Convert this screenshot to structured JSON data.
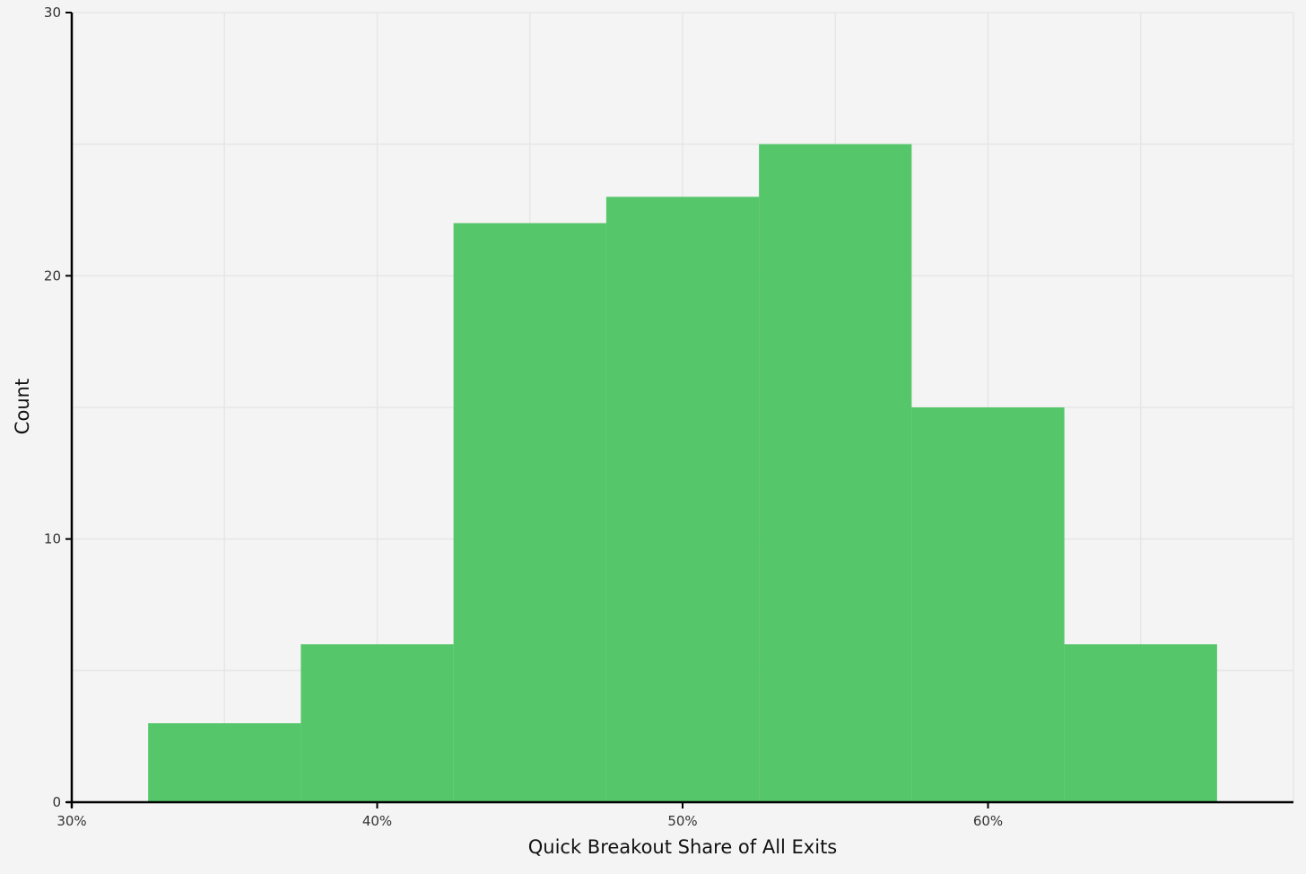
{
  "chart_data": {
    "type": "bar",
    "title": "",
    "xlabel": "Quick Breakout Share of All Exits",
    "ylabel": "Count",
    "x_ticks": [
      "30%",
      "40%",
      "50%",
      "60%"
    ],
    "x_tick_values": [
      0.3,
      0.4,
      0.5,
      0.6
    ],
    "y_ticks": [
      "0",
      "10",
      "20",
      "30"
    ],
    "y_tick_values": [
      0,
      10,
      20,
      30
    ],
    "xlim": [
      0.3,
      0.7
    ],
    "ylim": [
      0,
      30
    ],
    "bin_edges": [
      0.325,
      0.375,
      0.425,
      0.475,
      0.525,
      0.575,
      0.625,
      0.675
    ],
    "values": [
      3,
      6,
      22,
      23,
      25,
      15,
      6
    ],
    "grid": true,
    "colors": {
      "bar": "#55c66a",
      "background": "#f4f4f4",
      "grid": "#e6e6e6",
      "axis": "#000000"
    }
  }
}
